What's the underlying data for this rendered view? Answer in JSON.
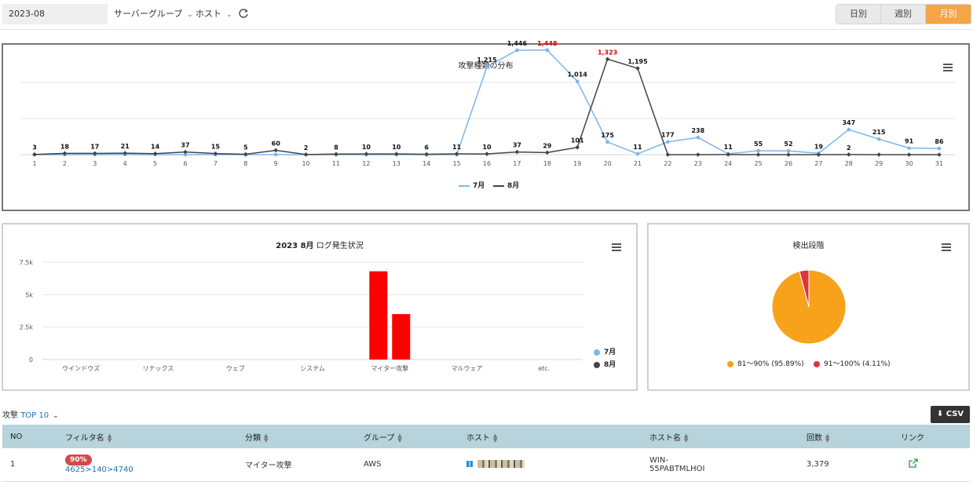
{
  "topbar": {
    "date": "2023-08",
    "server_group": "サーバーグループ",
    "host": "ホスト",
    "periods": [
      "日別",
      "週別",
      "月別"
    ]
  },
  "panels": {
    "attack_title": "攻撃種類の分布",
    "log_title_bold": "2023 8月",
    "log_title_rest": "ログ発生状況",
    "detect_title": "検出段階"
  },
  "colors": {
    "july": "#7cb5ec",
    "august": "#434348",
    "bar": "#ff0000",
    "pie_main": "#f7a21a",
    "pie_minor": "#e0333c",
    "accent_orange": "#f4a546",
    "header_teal": "#b7d3dc"
  },
  "chart_data": [
    {
      "type": "line",
      "title": "攻撃種類の分布",
      "x": [
        1,
        2,
        3,
        4,
        5,
        6,
        7,
        8,
        9,
        10,
        11,
        12,
        13,
        14,
        15,
        16,
        17,
        18,
        19,
        20,
        21,
        22,
        23,
        24,
        25,
        26,
        27,
        28,
        29,
        30,
        31
      ],
      "series": [
        {
          "name": "7月",
          "values": [
            0,
            0,
            0,
            0,
            0,
            0,
            0,
            0,
            0,
            0,
            0,
            0,
            0,
            0,
            0,
            1215,
            1446,
            1448,
            1014,
            175,
            11,
            177,
            238,
            11,
            55,
            52,
            19,
            347,
            215,
            91,
            86
          ]
        },
        {
          "name": "8月",
          "values": [
            3,
            18,
            17,
            21,
            14,
            37,
            15,
            5,
            60,
            2,
            8,
            10,
            10,
            6,
            11,
            10,
            37,
            29,
            101,
            1323,
            1195,
            0,
            0,
            2,
            0,
            0,
            0,
            2,
            0,
            0,
            0
          ]
        }
      ],
      "data_labels": [
        {
          "x": 1,
          "text": "3",
          "series": "8月"
        },
        {
          "x": 2,
          "text": "18",
          "series": "8月"
        },
        {
          "x": 3,
          "text": "17",
          "series": "8月"
        },
        {
          "x": 4,
          "text": "21",
          "series": "8月"
        },
        {
          "x": 5,
          "text": "14",
          "series": "8月"
        },
        {
          "x": 6,
          "text": "37",
          "series": "8月"
        },
        {
          "x": 7,
          "text": "15",
          "series": "8月"
        },
        {
          "x": 8,
          "text": "5",
          "series": "8月"
        },
        {
          "x": 9,
          "text": "60",
          "series": "8月"
        },
        {
          "x": 10,
          "text": "2",
          "series": "8月"
        },
        {
          "x": 11,
          "text": "8",
          "series": "8月"
        },
        {
          "x": 12,
          "text": "10",
          "series": "8月"
        },
        {
          "x": 13,
          "text": "10",
          "series": "8月"
        },
        {
          "x": 14,
          "text": "6",
          "series": "8月"
        },
        {
          "x": 15,
          "text": "11",
          "series": "8月"
        },
        {
          "x": 16,
          "text": "1,215",
          "series": "7月"
        },
        {
          "x": 16,
          "text": "10",
          "series": "8月"
        },
        {
          "x": 17,
          "text": "1,446",
          "series": "7月"
        },
        {
          "x": 17,
          "text": "37",
          "series": "8月"
        },
        {
          "x": 18,
          "text": "1,448",
          "series": "7月",
          "highlight": true
        },
        {
          "x": 18,
          "text": "29",
          "series": "8月"
        },
        {
          "x": 19,
          "text": "1,014",
          "series": "7月"
        },
        {
          "x": 19,
          "text": "101",
          "series": "8月"
        },
        {
          "x": 20,
          "text": "1,323",
          "series": "8月",
          "highlight": true
        },
        {
          "x": 20,
          "text": "175",
          "series": "7月"
        },
        {
          "x": 21,
          "text": "1,195",
          "series": "8月"
        },
        {
          "x": 21,
          "text": "11",
          "series": "7月"
        },
        {
          "x": 22,
          "text": "177",
          "series": "7月"
        },
        {
          "x": 23,
          "text": "238",
          "series": "7月"
        },
        {
          "x": 24,
          "text": "11",
          "series": "7月"
        },
        {
          "x": 25,
          "text": "55",
          "series": "7月"
        },
        {
          "x": 26,
          "text": "52",
          "series": "7月"
        },
        {
          "x": 27,
          "text": "19",
          "series": "7月"
        },
        {
          "x": 28,
          "text": "347",
          "series": "7月"
        },
        {
          "x": 28,
          "text": "2",
          "series": "8月"
        },
        {
          "x": 29,
          "text": "215",
          "series": "7月"
        },
        {
          "x": 30,
          "text": "91",
          "series": "7月"
        },
        {
          "x": 31,
          "text": "86",
          "series": "7月"
        }
      ],
      "ylim": [
        0,
        2000
      ],
      "grid": true,
      "legend": "bottom-center"
    },
    {
      "type": "bar",
      "title": "2023 8月 ログ発生状況",
      "categories": [
        "ウインドウズ",
        "リナックス",
        "ウェブ",
        "システム",
        "マイター攻撃",
        "マルウェア",
        "etc."
      ],
      "series": [
        {
          "name": "7月",
          "values": [
            0,
            0,
            0,
            0,
            6800,
            0,
            0
          ]
        },
        {
          "name": "8月",
          "values": [
            0,
            0,
            0,
            0,
            3500,
            0,
            0
          ]
        }
      ],
      "y_ticks": [
        "0",
        "2.5k",
        "5k",
        "7.5k"
      ],
      "ylim": [
        0,
        7500
      ],
      "grid": true,
      "legend": "right"
    },
    {
      "type": "pie",
      "title": "検出段階",
      "slices": [
        {
          "label": "81～90% (95.89%)",
          "value": 95.89
        },
        {
          "label": "91～100% (4.11%)",
          "value": 4.11
        }
      ],
      "legend": "bottom"
    }
  ],
  "attack_list": {
    "prefix": "攻撃",
    "top_label": "TOP",
    "top_value": "10",
    "csv_label": "CSV",
    "columns": [
      "NO",
      "フィルタ名",
      "分類",
      "グループ",
      "ホスト",
      "ホスト名",
      "回数",
      "リンク"
    ],
    "rows": [
      {
        "no": "1",
        "badge": "90%",
        "filter": "4625>140>4740",
        "category": "マイター攻撃",
        "group": "AWS",
        "hostname_line1": "WIN-",
        "hostname_line2": "55PABTMLHOI",
        "count": "3,379"
      }
    ]
  }
}
